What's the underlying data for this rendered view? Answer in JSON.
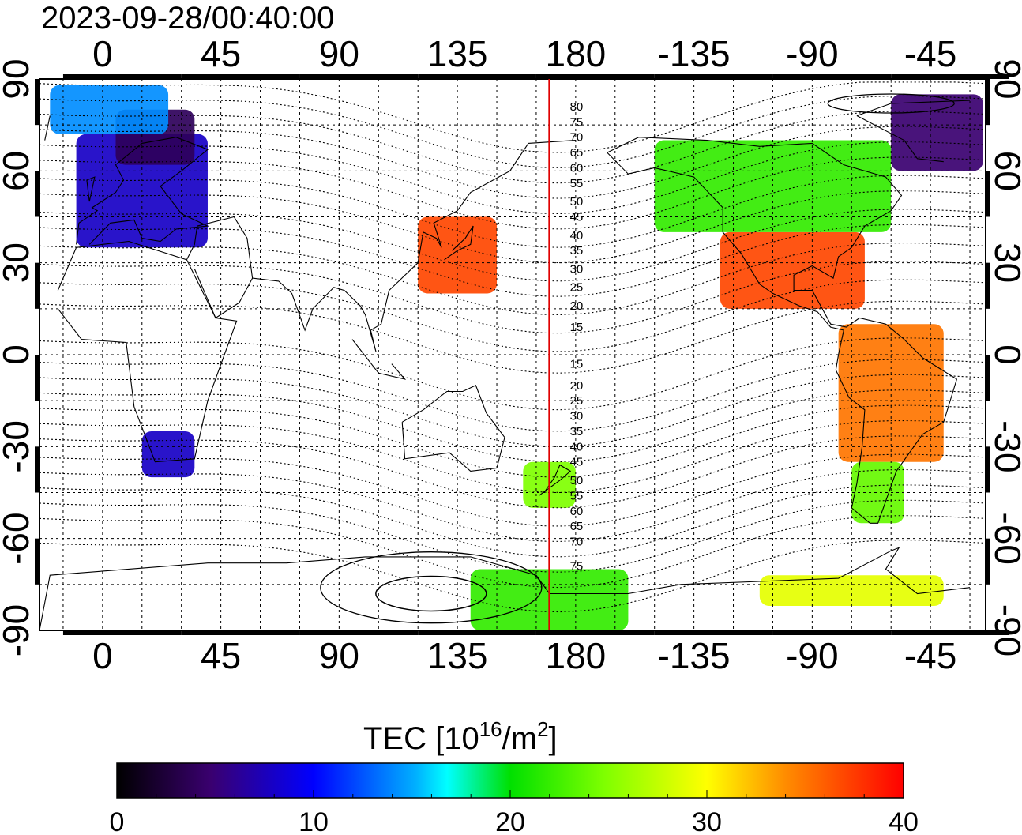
{
  "map": {
    "timestamp": "2023-09-28/00:40:00",
    "lon_ticks": [
      "0",
      "45",
      "90",
      "135",
      "180",
      "-135",
      "-90",
      "-45"
    ],
    "lat_ticks": [
      "90",
      "60",
      "30",
      "0",
      "-30",
      "-60",
      "-90"
    ],
    "lon_range_deg": [
      -24,
      336
    ],
    "lat_range_deg": [
      -90,
      90
    ],
    "grid": true,
    "marker_meridian_lon": 170,
    "marker_color": "#e00000",
    "contour_labels_north": [
      {
        "lat": 81,
        "text": "80"
      },
      {
        "lat": 76,
        "text": "75"
      },
      {
        "lat": 71,
        "text": "70"
      },
      {
        "lat": 66,
        "text": "65"
      },
      {
        "lat": 61,
        "text": "60"
      },
      {
        "lat": 56,
        "text": "55"
      },
      {
        "lat": 50,
        "text": "50"
      },
      {
        "lat": 45,
        "text": "45"
      },
      {
        "lat": 39,
        "text": "40"
      },
      {
        "lat": 34,
        "text": "35"
      },
      {
        "lat": 28,
        "text": "30"
      },
      {
        "lat": 22,
        "text": "25"
      },
      {
        "lat": 16,
        "text": "20"
      },
      {
        "lat": 9,
        "text": "15"
      }
    ],
    "contour_labels_south": [
      {
        "lat": -3,
        "text": "15"
      },
      {
        "lat": -10,
        "text": "20"
      },
      {
        "lat": -15,
        "text": "25"
      },
      {
        "lat": -20,
        "text": "30"
      },
      {
        "lat": -25,
        "text": "35"
      },
      {
        "lat": -30,
        "text": "40"
      },
      {
        "lat": -35,
        "text": "45"
      },
      {
        "lat": -41,
        "text": "50"
      },
      {
        "lat": -46,
        "text": "55"
      },
      {
        "lat": -51,
        "text": "60"
      },
      {
        "lat": -56,
        "text": "65"
      },
      {
        "lat": -61,
        "text": "70"
      },
      {
        "lat": -69,
        "text": "75"
      }
    ],
    "tec_regions": [
      {
        "name": "europe",
        "lon": [
          -10,
          40
        ],
        "lat": [
          35,
          72
        ],
        "tec": 8
      },
      {
        "name": "scandinavia",
        "lon": [
          5,
          35
        ],
        "lat": [
          62,
          80
        ],
        "tec": 4
      },
      {
        "name": "arctic-west",
        "lon": [
          -20,
          25
        ],
        "lat": [
          72,
          88
        ],
        "tec": 14
      },
      {
        "name": "japan-pacific",
        "lon": [
          120,
          150
        ],
        "lat": [
          20,
          45
        ],
        "tec": 37
      },
      {
        "name": "north-america-south",
        "lon": [
          -125,
          -70
        ],
        "lat": [
          15,
          40
        ],
        "tec": 37
      },
      {
        "name": "north-america-north",
        "lon": [
          -150,
          -60
        ],
        "lat": [
          40,
          70
        ],
        "tec": 22
      },
      {
        "name": "greenland",
        "lon": [
          -60,
          -25
        ],
        "lat": [
          60,
          85
        ],
        "tec": 5
      },
      {
        "name": "south-america",
        "lon": [
          -80,
          -40
        ],
        "lat": [
          -35,
          10
        ],
        "tec": 35
      },
      {
        "name": "south-america-low",
        "lon": [
          -75,
          -55
        ],
        "lat": [
          -55,
          -35
        ],
        "tec": 24
      },
      {
        "name": "southern-africa",
        "lon": [
          15,
          35
        ],
        "lat": [
          -40,
          -25
        ],
        "tec": 8
      },
      {
        "name": "new-zealand",
        "lon": [
          160,
          180
        ],
        "lat": [
          -50,
          -35
        ],
        "tec": 25
      },
      {
        "name": "antarctic-pacific",
        "lon": [
          140,
          200
        ],
        "lat": [
          -90,
          -70
        ],
        "tec": 22
      },
      {
        "name": "antarctic-atlantic",
        "lon": [
          -110,
          -40
        ],
        "lat": [
          -82,
          -72
        ],
        "tec": 29
      }
    ]
  },
  "colorbar": {
    "label_prefix": "TEC  [10",
    "label_exp": "16",
    "label_mid": "/m",
    "label_exp2": "2",
    "label_suffix": "]",
    "min": 0,
    "max": 40,
    "ticks": [
      "0",
      "10",
      "20",
      "30",
      "40"
    ]
  }
}
